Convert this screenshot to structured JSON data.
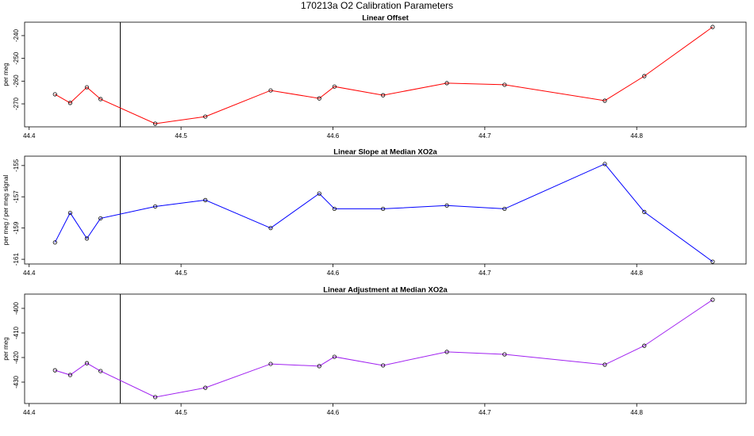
{
  "title": "170213a   O2 Calibration Parameters",
  "chart_data": [
    {
      "type": "line",
      "title": "Linear Offset",
      "y_label": "per meg",
      "x": [
        44.417,
        44.427,
        44.438,
        44.447,
        44.483,
        44.516,
        44.559,
        44.591,
        44.601,
        44.633,
        44.675,
        44.713,
        44.779,
        44.805,
        44.85
      ],
      "series": [
        {
          "color": "#ff0000",
          "values": [
            -265.8,
            -269.6,
            -262.7,
            -267.9,
            -278.7,
            -275.6,
            -264.1,
            -267.6,
            -262.4,
            -266.2,
            -260.9,
            -261.6,
            -268.6,
            -257.8,
            -236.2
          ]
        }
      ],
      "vlines": [
        44.46
      ],
      "xlim": [
        44.397,
        44.872
      ],
      "xticks": [
        44.4,
        44.5,
        44.6,
        44.7,
        44.8
      ],
      "ylim": [
        -280.1,
        -234.1
      ],
      "yticks": [
        -270,
        -260,
        -250,
        -240
      ]
    },
    {
      "type": "line",
      "title": "Linear Slope at Median XO2a",
      "y_label": "per meg / per meg signal",
      "x": [
        44.417,
        44.427,
        44.438,
        44.447,
        44.483,
        44.516,
        44.559,
        44.591,
        44.601,
        44.633,
        44.675,
        44.713,
        44.779,
        44.805,
        44.85
      ],
      "series": [
        {
          "color": "#0000ff",
          "values": [
            -159.92,
            -158.03,
            -159.67,
            -158.38,
            -157.62,
            -157.21,
            -159.0,
            -156.79,
            -157.77,
            -157.77,
            -157.56,
            -157.77,
            -154.9,
            -157.97,
            -161.15
          ]
        }
      ],
      "vlines": [
        44.46
      ],
      "xlim": [
        44.397,
        44.872
      ],
      "xticks": [
        44.4,
        44.5,
        44.6,
        44.7,
        44.8
      ],
      "ylim": [
        -161.3,
        -154.4
      ],
      "yticks": [
        -161,
        -159,
        -157,
        -155
      ]
    },
    {
      "type": "line",
      "title": "Linear Adjustment at Median XO2a",
      "y_label": "per meg",
      "x": [
        44.417,
        44.427,
        44.438,
        44.447,
        44.483,
        44.516,
        44.559,
        44.591,
        44.601,
        44.633,
        44.675,
        44.713,
        44.779,
        44.805,
        44.85
      ],
      "series": [
        {
          "color": "#a020f0",
          "values": [
            -425.2,
            -427.1,
            -422.3,
            -425.5,
            -436.1,
            -432.3,
            -422.6,
            -423.5,
            -419.7,
            -423.2,
            -417.7,
            -418.7,
            -422.9,
            -415.2,
            -396.5
          ]
        }
      ],
      "vlines": [
        44.46
      ],
      "xlim": [
        44.397,
        44.872
      ],
      "xticks": [
        44.4,
        44.5,
        44.6,
        44.7,
        44.8
      ],
      "ylim": [
        -438.7,
        -394.2
      ],
      "yticks": [
        -430,
        -420,
        -410,
        -400
      ]
    }
  ]
}
